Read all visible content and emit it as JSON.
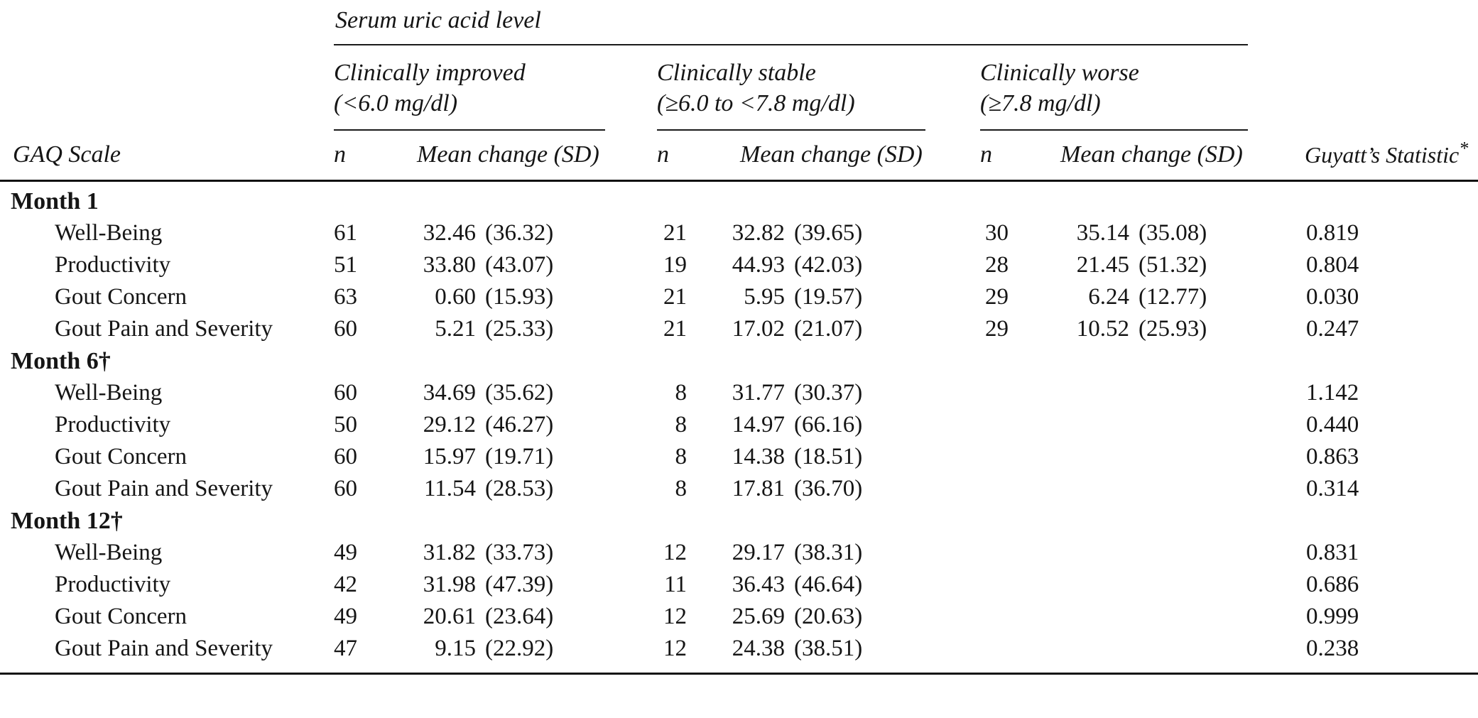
{
  "table": {
    "spanner": "Serum uric acid level",
    "corner_header": "GAQ Scale",
    "subcol_n": "n",
    "subcol_mean": "Mean change (SD)",
    "stat_header": "Guyatt’s Statistic",
    "stat_header_marker": "*",
    "groups": [
      {
        "title": "Clinically improved",
        "subtitle": "(<6.0 mg/dl)"
      },
      {
        "title": "Clinically stable",
        "subtitle": "(≥6.0 to <7.8 mg/dl)"
      },
      {
        "title": "Clinically worse",
        "subtitle": "(≥7.8 mg/dl)"
      }
    ],
    "sections": [
      {
        "label": "Month 1",
        "rows": [
          {
            "label": "Well-Being",
            "g1": {
              "n": "61",
              "mean": "32.46",
              "sd": "(36.32)"
            },
            "g2": {
              "n": "21",
              "mean": "32.82",
              "sd": "(39.65)"
            },
            "g3": {
              "n": "30",
              "mean": "35.14",
              "sd": "(35.08)"
            },
            "guyatt": "0.819"
          },
          {
            "label": "Productivity",
            "g1": {
              "n": "51",
              "mean": "33.80",
              "sd": "(43.07)"
            },
            "g2": {
              "n": "19",
              "mean": "44.93",
              "sd": "(42.03)"
            },
            "g3": {
              "n": "28",
              "mean": "21.45",
              "sd": "(51.32)"
            },
            "guyatt": "0.804"
          },
          {
            "label": "Gout Concern",
            "g1": {
              "n": "63",
              "mean": "0.60",
              "sd": "(15.93)"
            },
            "g2": {
              "n": "21",
              "mean": "5.95",
              "sd": "(19.57)"
            },
            "g3": {
              "n": "29",
              "mean": "6.24",
              "sd": "(12.77)"
            },
            "guyatt": "0.030"
          },
          {
            "label": "Gout Pain and Severity",
            "g1": {
              "n": "60",
              "mean": "5.21",
              "sd": "(25.33)"
            },
            "g2": {
              "n": "21",
              "mean": "17.02",
              "sd": "(21.07)"
            },
            "g3": {
              "n": "29",
              "mean": "10.52",
              "sd": "(25.93)"
            },
            "guyatt": "0.247"
          }
        ]
      },
      {
        "label": "Month 6†",
        "rows": [
          {
            "label": "Well-Being",
            "g1": {
              "n": "60",
              "mean": "34.69",
              "sd": "(35.62)"
            },
            "g2": {
              "n": "8",
              "mean": "31.77",
              "sd": "(30.37)"
            },
            "g3": {
              "n": "",
              "mean": "",
              "sd": ""
            },
            "guyatt": "1.142"
          },
          {
            "label": "Productivity",
            "g1": {
              "n": "50",
              "mean": "29.12",
              "sd": "(46.27)"
            },
            "g2": {
              "n": "8",
              "mean": "14.97",
              "sd": "(66.16)"
            },
            "g3": {
              "n": "",
              "mean": "",
              "sd": ""
            },
            "guyatt": "0.440"
          },
          {
            "label": "Gout Concern",
            "g1": {
              "n": "60",
              "mean": "15.97",
              "sd": "(19.71)"
            },
            "g2": {
              "n": "8",
              "mean": "14.38",
              "sd": "(18.51)"
            },
            "g3": {
              "n": "",
              "mean": "",
              "sd": ""
            },
            "guyatt": "0.863"
          },
          {
            "label": "Gout Pain and Severity",
            "g1": {
              "n": "60",
              "mean": "11.54",
              "sd": "(28.53)"
            },
            "g2": {
              "n": "8",
              "mean": "17.81",
              "sd": "(36.70)"
            },
            "g3": {
              "n": "",
              "mean": "",
              "sd": ""
            },
            "guyatt": "0.314"
          }
        ]
      },
      {
        "label": "Month 12†",
        "rows": [
          {
            "label": "Well-Being",
            "g1": {
              "n": "49",
              "mean": "31.82",
              "sd": "(33.73)"
            },
            "g2": {
              "n": "12",
              "mean": "29.17",
              "sd": "(38.31)"
            },
            "g3": {
              "n": "",
              "mean": "",
              "sd": ""
            },
            "guyatt": "0.831"
          },
          {
            "label": "Productivity",
            "g1": {
              "n": "42",
              "mean": "31.98",
              "sd": "(47.39)"
            },
            "g2": {
              "n": "11",
              "mean": "36.43",
              "sd": "(46.64)"
            },
            "g3": {
              "n": "",
              "mean": "",
              "sd": ""
            },
            "guyatt": "0.686"
          },
          {
            "label": "Gout Concern",
            "g1": {
              "n": "49",
              "mean": "20.61",
              "sd": "(23.64)"
            },
            "g2": {
              "n": "12",
              "mean": "25.69",
              "sd": "(20.63)"
            },
            "g3": {
              "n": "",
              "mean": "",
              "sd": ""
            },
            "guyatt": "0.999"
          },
          {
            "label": "Gout Pain and Severity",
            "g1": {
              "n": "47",
              "mean": "9.15",
              "sd": "(22.92)"
            },
            "g2": {
              "n": "12",
              "mean": "24.38",
              "sd": "(38.51)"
            },
            "g3": {
              "n": "",
              "mean": "",
              "sd": ""
            },
            "guyatt": "0.238"
          }
        ]
      }
    ]
  }
}
